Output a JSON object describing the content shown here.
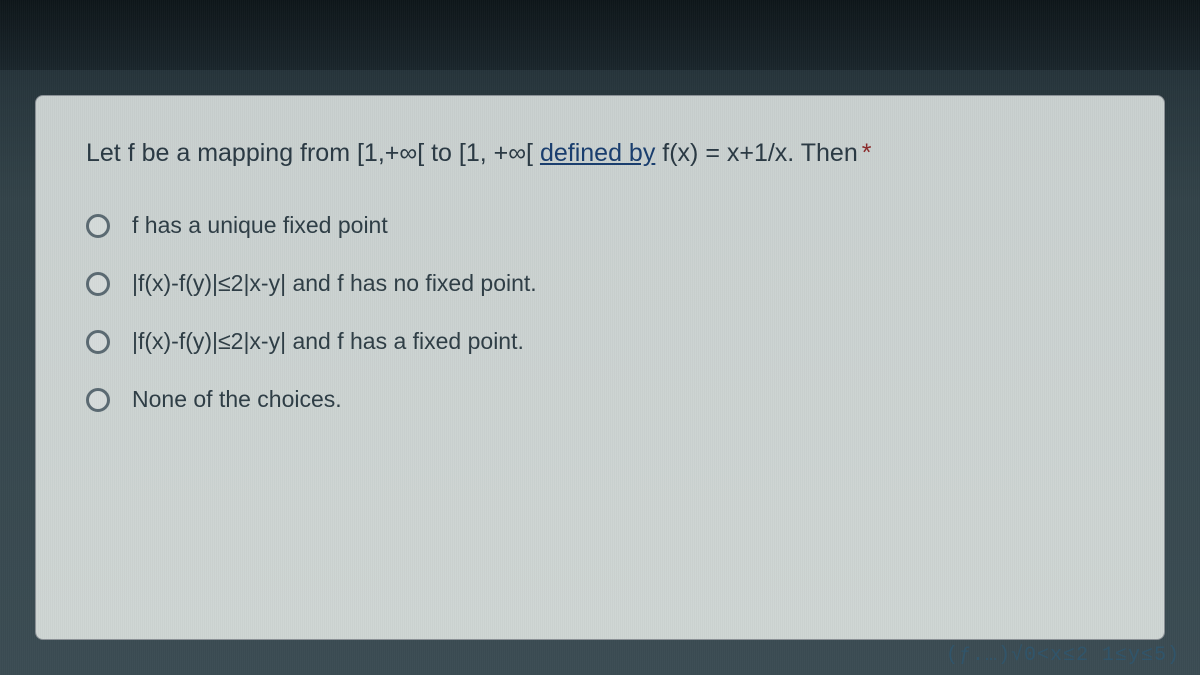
{
  "question": {
    "prefix": "Let f be a mapping from [1,+∞[ to [1, +∞[ ",
    "link_part": "defined by",
    "suffix": " f(x) = x+1/x. Then",
    "required_marker": "*"
  },
  "options": [
    {
      "label": "f has a unique fixed point"
    },
    {
      "label": "|f(x)-f(y)|≤2|x-y| and f has no fixed point."
    },
    {
      "label": "|f(x)-f(y)|≤2|x-y| and f has a fixed point."
    },
    {
      "label": "None of the choices."
    }
  ],
  "watermark": "(ƒ.…)√0<x≤2  1≤y≤5)",
  "colors": {
    "card_bg": "#ced5d3",
    "text": "#2b3a44",
    "link": "#1a3e6e",
    "radio_border": "#5b6a72",
    "screen_bg": "#334349"
  }
}
